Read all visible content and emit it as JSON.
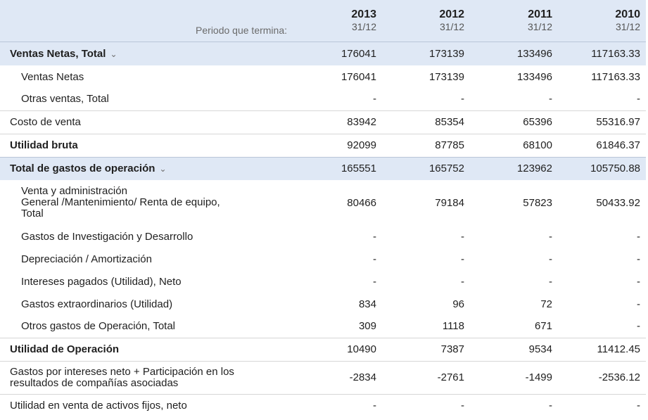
{
  "header": {
    "period_label": "Periodo que termina:",
    "years": [
      {
        "year": "2013",
        "date": "31/12"
      },
      {
        "year": "2012",
        "date": "31/12"
      },
      {
        "year": "2011",
        "date": "31/12"
      },
      {
        "year": "2010",
        "date": "31/12"
      }
    ]
  },
  "rows": [
    {
      "label": "Ventas Netas, Total",
      "values": [
        "176041",
        "173139",
        "133496",
        "117163.33"
      ]
    },
    {
      "label": "Ventas Netas",
      "values": [
        "176041",
        "173139",
        "133496",
        "117163.33"
      ]
    },
    {
      "label": "Otras ventas, Total",
      "values": [
        "-",
        "-",
        "-",
        "-"
      ]
    },
    {
      "label": "Costo de venta",
      "values": [
        "83942",
        "85354",
        "65396",
        "55316.97"
      ]
    },
    {
      "label": "Utilidad bruta",
      "values": [
        "92099",
        "87785",
        "68100",
        "61846.37"
      ]
    },
    {
      "label": "Total de gastos de operación",
      "values": [
        "165551",
        "165752",
        "123962",
        "105750.88"
      ]
    },
    {
      "label_lines": [
        "Venta y administración",
        "General /Mantenimiento/ Renta de equipo,",
        "Total"
      ],
      "values": [
        "80466",
        "79184",
        "57823",
        "50433.92"
      ]
    },
    {
      "label": "Gastos de Investigación y Desarrollo",
      "values": [
        "-",
        "-",
        "-",
        "-"
      ]
    },
    {
      "label": "Depreciación / Amortización",
      "values": [
        "-",
        "-",
        "-",
        "-"
      ]
    },
    {
      "label": "Intereses pagados (Utilidad), Neto",
      "values": [
        "-",
        "-",
        "-",
        "-"
      ]
    },
    {
      "label": "Gastos extraordinarios (Utilidad)",
      "values": [
        "834",
        "96",
        "72",
        "-"
      ]
    },
    {
      "label": "Otros gastos de Operación, Total",
      "values": [
        "309",
        "1118",
        "671",
        "-"
      ]
    },
    {
      "label": "Utilidad de Operación",
      "values": [
        "10490",
        "7387",
        "9534",
        "11412.45"
      ]
    },
    {
      "label_lines": [
        "Gastos por intereses neto + Participación en los",
        "resultados de compañías asociadas"
      ],
      "values": [
        "-2834",
        "-2761",
        "-1499",
        "-2536.12"
      ]
    },
    {
      "label": "Utilidad en venta de activos fijos, neto",
      "values": [
        "-",
        "-",
        "-",
        "-"
      ]
    }
  ]
}
